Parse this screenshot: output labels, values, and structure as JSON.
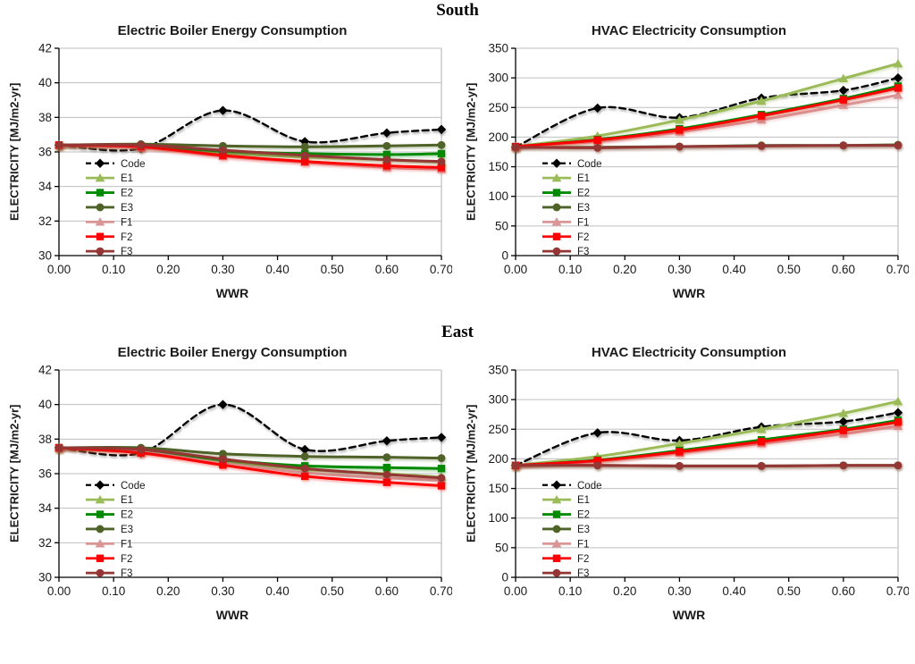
{
  "sections": [
    {
      "label": "South"
    },
    {
      "label": "East"
    }
  ],
  "styles": {
    "grid_color": "#BFBFBF",
    "axis_color": "#000000",
    "text_color": "#1A1A1A",
    "background": "#FFFFFF"
  },
  "chart_data": [
    {
      "type": "line",
      "section": "South",
      "title": "Electric Boiler Energy Consumption",
      "xlabel": "WWR",
      "ylabel": "ELECTRICITY [MJ/m2-yr]",
      "x": [
        0,
        0.15,
        0.3,
        0.45,
        0.6,
        0.7
      ],
      "xlim": [
        0,
        0.7
      ],
      "x_ticks": {
        "values": [
          0,
          0.1,
          0.2,
          0.3,
          0.4,
          0.5,
          0.6,
          0.7
        ],
        "labels": [
          "0.00",
          "0.10",
          "0.20",
          "0.30",
          "0.40",
          "0.50",
          "0.60",
          "0.70"
        ]
      },
      "ylim": [
        30,
        42
      ],
      "y_ticks": {
        "values": [
          30,
          32,
          34,
          36,
          38,
          40,
          42
        ],
        "labels": [
          "30",
          "32",
          "34",
          "36",
          "38",
          "40",
          "42"
        ]
      },
      "grid": "horizontal",
      "legend_position": "inside-left",
      "series": [
        {
          "name": "Code",
          "color": "#000000",
          "marker": "diamond",
          "line": "dashed",
          "values": [
            36.4,
            36.2,
            38.4,
            36.6,
            37.1,
            37.3
          ]
        },
        {
          "name": "E1",
          "color": "#9BBB59",
          "marker": "triangle",
          "line": "solid",
          "values": [
            36.4,
            36.3,
            35.95,
            35.7,
            35.55,
            35.4
          ]
        },
        {
          "name": "E2",
          "color": "#008A00",
          "marker": "square",
          "line": "solid",
          "values": [
            36.4,
            36.35,
            36.05,
            35.9,
            35.85,
            35.9
          ]
        },
        {
          "name": "E3",
          "color": "#4F6228",
          "marker": "circle",
          "line": "solid",
          "values": [
            36.4,
            36.45,
            36.35,
            36.3,
            36.35,
            36.4
          ]
        },
        {
          "name": "F1",
          "color": "#D99694",
          "marker": "triangle",
          "line": "solid",
          "values": [
            36.4,
            36.25,
            35.75,
            35.4,
            35.1,
            35.0
          ]
        },
        {
          "name": "F2",
          "color": "#FF0000",
          "marker": "square",
          "line": "solid",
          "values": [
            36.4,
            36.3,
            35.8,
            35.45,
            35.2,
            35.1
          ]
        },
        {
          "name": "F3",
          "color": "#943634",
          "marker": "circle",
          "line": "solid",
          "values": [
            36.4,
            36.4,
            36.1,
            35.8,
            35.55,
            35.45
          ]
        }
      ]
    },
    {
      "type": "line",
      "section": "South",
      "title": "HVAC Electricity Consumption",
      "xlabel": "WWR",
      "ylabel": "ELECTRICITY [MJ/m2-yr]",
      "x": [
        0,
        0.15,
        0.3,
        0.45,
        0.6,
        0.7
      ],
      "xlim": [
        0,
        0.7
      ],
      "x_ticks": {
        "values": [
          0,
          0.1,
          0.2,
          0.3,
          0.4,
          0.5,
          0.6,
          0.7
        ],
        "labels": [
          "0.00",
          "0.10",
          "0.20",
          "0.30",
          "0.40",
          "0.50",
          "0.60",
          "0.70"
        ]
      },
      "ylim": [
        0,
        350
      ],
      "y_ticks": {
        "values": [
          0,
          50,
          100,
          150,
          200,
          250,
          300,
          350
        ],
        "labels": [
          "0",
          "50",
          "100",
          "150",
          "200",
          "250",
          "300",
          "350"
        ]
      },
      "grid": "horizontal",
      "legend_position": "inside-left",
      "series": [
        {
          "name": "Code",
          "color": "#000000",
          "marker": "diamond",
          "line": "dashed",
          "values": [
            183,
            249,
            233,
            266,
            279,
            300
          ]
        },
        {
          "name": "E1",
          "color": "#9BBB59",
          "marker": "triangle",
          "line": "solid",
          "values": [
            184,
            202,
            229,
            261,
            299,
            324
          ]
        },
        {
          "name": "E2",
          "color": "#008A00",
          "marker": "square",
          "line": "solid",
          "values": [
            184,
            196,
            214,
            238,
            265,
            286
          ]
        },
        {
          "name": "E3",
          "color": "#4F6228",
          "marker": "circle",
          "line": "solid",
          "values": [
            183,
            183,
            184,
            186,
            186,
            187
          ]
        },
        {
          "name": "F1",
          "color": "#D99694",
          "marker": "triangle",
          "line": "solid",
          "values": [
            184,
            193,
            209,
            229,
            254,
            271
          ]
        },
        {
          "name": "F2",
          "color": "#FF0000",
          "marker": "square",
          "line": "solid",
          "values": [
            184,
            195,
            212,
            236,
            263,
            283
          ]
        },
        {
          "name": "F3",
          "color": "#943634",
          "marker": "circle",
          "line": "solid",
          "values": [
            183,
            182,
            184,
            185,
            186,
            186
          ]
        }
      ]
    },
    {
      "type": "line",
      "section": "East",
      "title": "Electric Boiler Energy Consumption",
      "xlabel": "WWR",
      "ylabel": "ELECTRICITY [MJ/m2-yr]",
      "x": [
        0,
        0.15,
        0.3,
        0.45,
        0.6,
        0.7
      ],
      "xlim": [
        0,
        0.7
      ],
      "x_ticks": {
        "values": [
          0,
          0.1,
          0.2,
          0.3,
          0.4,
          0.5,
          0.6,
          0.7
        ],
        "labels": [
          "0.00",
          "0.10",
          "0.20",
          "0.30",
          "0.40",
          "0.50",
          "0.60",
          "0.70"
        ]
      },
      "ylim": [
        30,
        42
      ],
      "y_ticks": {
        "values": [
          30,
          32,
          34,
          36,
          38,
          40,
          42
        ],
        "labels": [
          "30",
          "32",
          "34",
          "36",
          "38",
          "40",
          "42"
        ]
      },
      "grid": "horizontal",
      "legend_position": "inside-left",
      "series": [
        {
          "name": "Code",
          "color": "#000000",
          "marker": "diamond",
          "line": "dashed",
          "values": [
            37.5,
            37.2,
            40.0,
            37.4,
            37.9,
            38.1
          ]
        },
        {
          "name": "E1",
          "color": "#9BBB59",
          "marker": "triangle",
          "line": "solid",
          "values": [
            37.5,
            37.3,
            36.75,
            36.25,
            36.0,
            35.8
          ]
        },
        {
          "name": "E2",
          "color": "#008A00",
          "marker": "square",
          "line": "solid",
          "values": [
            37.5,
            37.35,
            36.8,
            36.45,
            36.35,
            36.3
          ]
        },
        {
          "name": "E3",
          "color": "#4F6228",
          "marker": "circle",
          "line": "solid",
          "values": [
            37.5,
            37.5,
            37.15,
            37.0,
            36.95,
            36.9
          ]
        },
        {
          "name": "F1",
          "color": "#D99694",
          "marker": "triangle",
          "line": "solid",
          "values": [
            37.5,
            37.25,
            36.6,
            36.05,
            35.75,
            35.6
          ]
        },
        {
          "name": "F2",
          "color": "#FF0000",
          "marker": "square",
          "line": "solid",
          "values": [
            37.5,
            37.2,
            36.5,
            35.85,
            35.5,
            35.3
          ]
        },
        {
          "name": "F3",
          "color": "#943634",
          "marker": "circle",
          "line": "solid",
          "values": [
            37.5,
            37.4,
            36.85,
            36.3,
            35.95,
            35.75
          ]
        }
      ]
    },
    {
      "type": "line",
      "section": "East",
      "title": "HVAC Electricity Consumption",
      "xlabel": "WWR",
      "ylabel": "ELECTRICITY [MJ/m2-yr]",
      "x": [
        0,
        0.15,
        0.3,
        0.45,
        0.6,
        0.7
      ],
      "xlim": [
        0,
        0.7
      ],
      "x_ticks": {
        "values": [
          0,
          0.1,
          0.2,
          0.3,
          0.4,
          0.5,
          0.6,
          0.7
        ],
        "labels": [
          "0.00",
          "0.10",
          "0.20",
          "0.30",
          "0.40",
          "0.50",
          "0.60",
          "0.70"
        ]
      },
      "ylim": [
        0,
        350
      ],
      "y_ticks": {
        "values": [
          0,
          50,
          100,
          150,
          200,
          250,
          300,
          350
        ],
        "labels": [
          "0",
          "50",
          "100",
          "150",
          "200",
          "250",
          "300",
          "350"
        ]
      },
      "grid": "horizontal",
      "legend_position": "inside-left",
      "series": [
        {
          "name": "Code",
          "color": "#000000",
          "marker": "diamond",
          "line": "dashed",
          "values": [
            189,
            244,
            231,
            254,
            263,
            278
          ]
        },
        {
          "name": "E1",
          "color": "#9BBB59",
          "marker": "triangle",
          "line": "solid",
          "values": [
            189,
            204,
            226,
            250,
            277,
            297
          ]
        },
        {
          "name": "E2",
          "color": "#008A00",
          "marker": "square",
          "line": "solid",
          "values": [
            189,
            198,
            214,
            232,
            250,
            265
          ]
        },
        {
          "name": "E3",
          "color": "#4F6228",
          "marker": "circle",
          "line": "solid",
          "values": [
            189,
            189,
            188,
            188,
            189,
            189
          ]
        },
        {
          "name": "F1",
          "color": "#D99694",
          "marker": "triangle",
          "line": "solid",
          "values": [
            189,
            196,
            210,
            226,
            242,
            255
          ]
        },
        {
          "name": "F2",
          "color": "#FF0000",
          "marker": "square",
          "line": "solid",
          "values": [
            189,
            197,
            212,
            229,
            248,
            262
          ]
        },
        {
          "name": "F3",
          "color": "#943634",
          "marker": "circle",
          "line": "solid",
          "values": [
            189,
            189,
            188,
            188,
            189,
            189
          ]
        }
      ]
    }
  ]
}
